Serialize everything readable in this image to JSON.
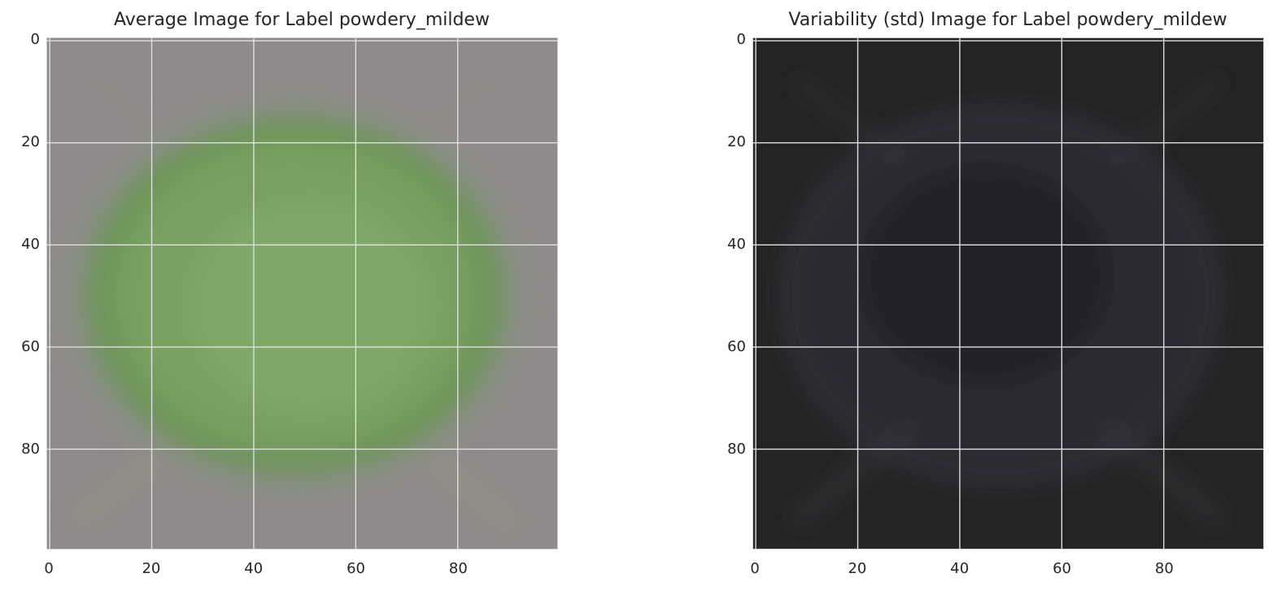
{
  "colors": {
    "mean_background": "#8f8a8b",
    "mean_leaf": "#79a060",
    "mean_leaf_edge": "#6c9653",
    "std_background": "#242425",
    "std_leaf": "#2a2a33",
    "std_streak": "#383842",
    "grid": "#e0e0e0"
  },
  "chart_data": [
    {
      "type": "image",
      "title": "Average Image for Label powdery_mildew",
      "x_ticks": [
        "0",
        "20",
        "40",
        "60",
        "80"
      ],
      "y_ticks": [
        "0",
        "20",
        "40",
        "60",
        "80"
      ],
      "xlim": [
        -0.5,
        99.5
      ],
      "ylim": [
        99.5,
        -0.5
      ],
      "grid": true,
      "image_size": [
        100,
        100
      ],
      "description_values": {
        "leaf_center": [
          48,
          48
        ],
        "leaf_radius": [
          38,
          33
        ]
      }
    },
    {
      "type": "image",
      "title": "Variability (std) Image for Label powdery_mildew",
      "x_ticks": [
        "0",
        "20",
        "40",
        "60",
        "80"
      ],
      "y_ticks": [
        "0",
        "20",
        "40",
        "60",
        "80"
      ],
      "xlim": [
        -0.5,
        99.5
      ],
      "ylim": [
        99.5,
        -0.5
      ],
      "grid": true,
      "image_size": [
        100,
        100
      ],
      "description_values": {
        "leaf_center": [
          48,
          48
        ],
        "leaf_radius": [
          38,
          33
        ]
      }
    }
  ]
}
